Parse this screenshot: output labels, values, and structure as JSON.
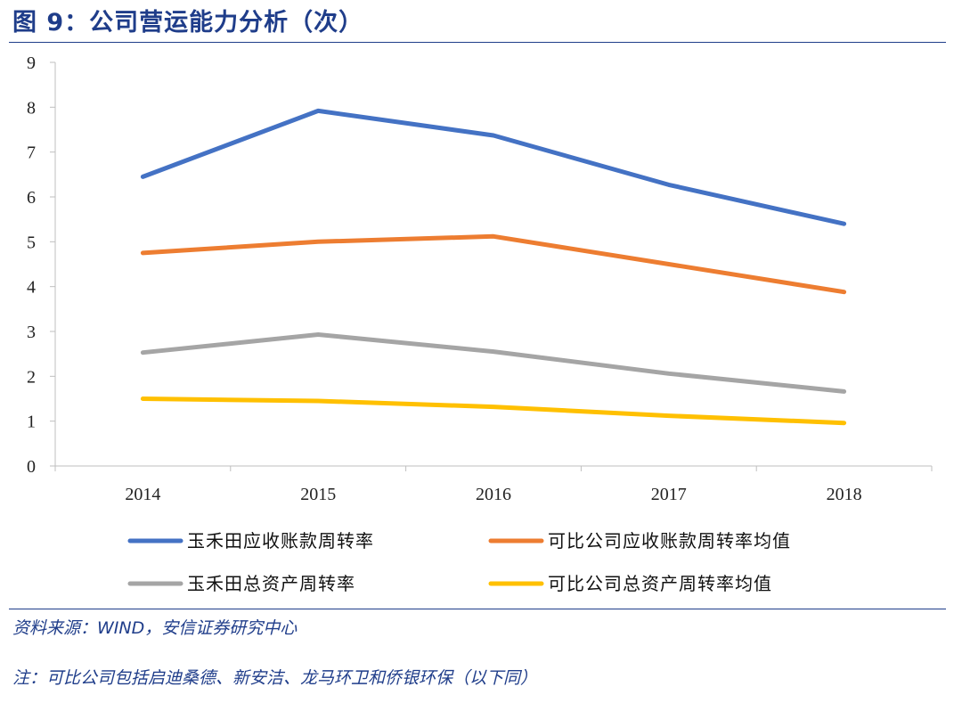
{
  "header": {
    "title": "图 9：公司营运能力分析（次）"
  },
  "footer": {
    "source": "资料来源：WIND，安信证券研究中心",
    "note": "注：可比公司包括启迪桑德、新安洁、龙马环卫和侨银环保（以下同）"
  },
  "colors": {
    "accent": "#1f3d8a"
  },
  "chart_data": {
    "type": "line",
    "title": "",
    "xlabel": "",
    "ylabel": "",
    "x": [
      "2014",
      "2015",
      "2016",
      "2017",
      "2018"
    ],
    "ylim": [
      0,
      9
    ],
    "yticks": [
      0,
      1,
      2,
      3,
      4,
      5,
      6,
      7,
      8,
      9
    ],
    "grid": false,
    "legend_position": "bottom",
    "series": [
      {
        "name": "玉禾田应收账款周转率",
        "color": "#4472c4",
        "values": [
          6.45,
          7.92,
          7.37,
          6.27,
          5.4
        ]
      },
      {
        "name": "可比公司应收账款周转率均值",
        "color": "#ed7d31",
        "values": [
          4.75,
          5.0,
          5.12,
          4.5,
          3.88
        ]
      },
      {
        "name": "玉禾田总资产周转率",
        "color": "#a5a5a5",
        "values": [
          2.53,
          2.93,
          2.55,
          2.06,
          1.66
        ]
      },
      {
        "name": "可比公司总资产周转率均值",
        "color": "#ffc000",
        "values": [
          1.5,
          1.45,
          1.32,
          1.12,
          0.96
        ]
      }
    ]
  }
}
